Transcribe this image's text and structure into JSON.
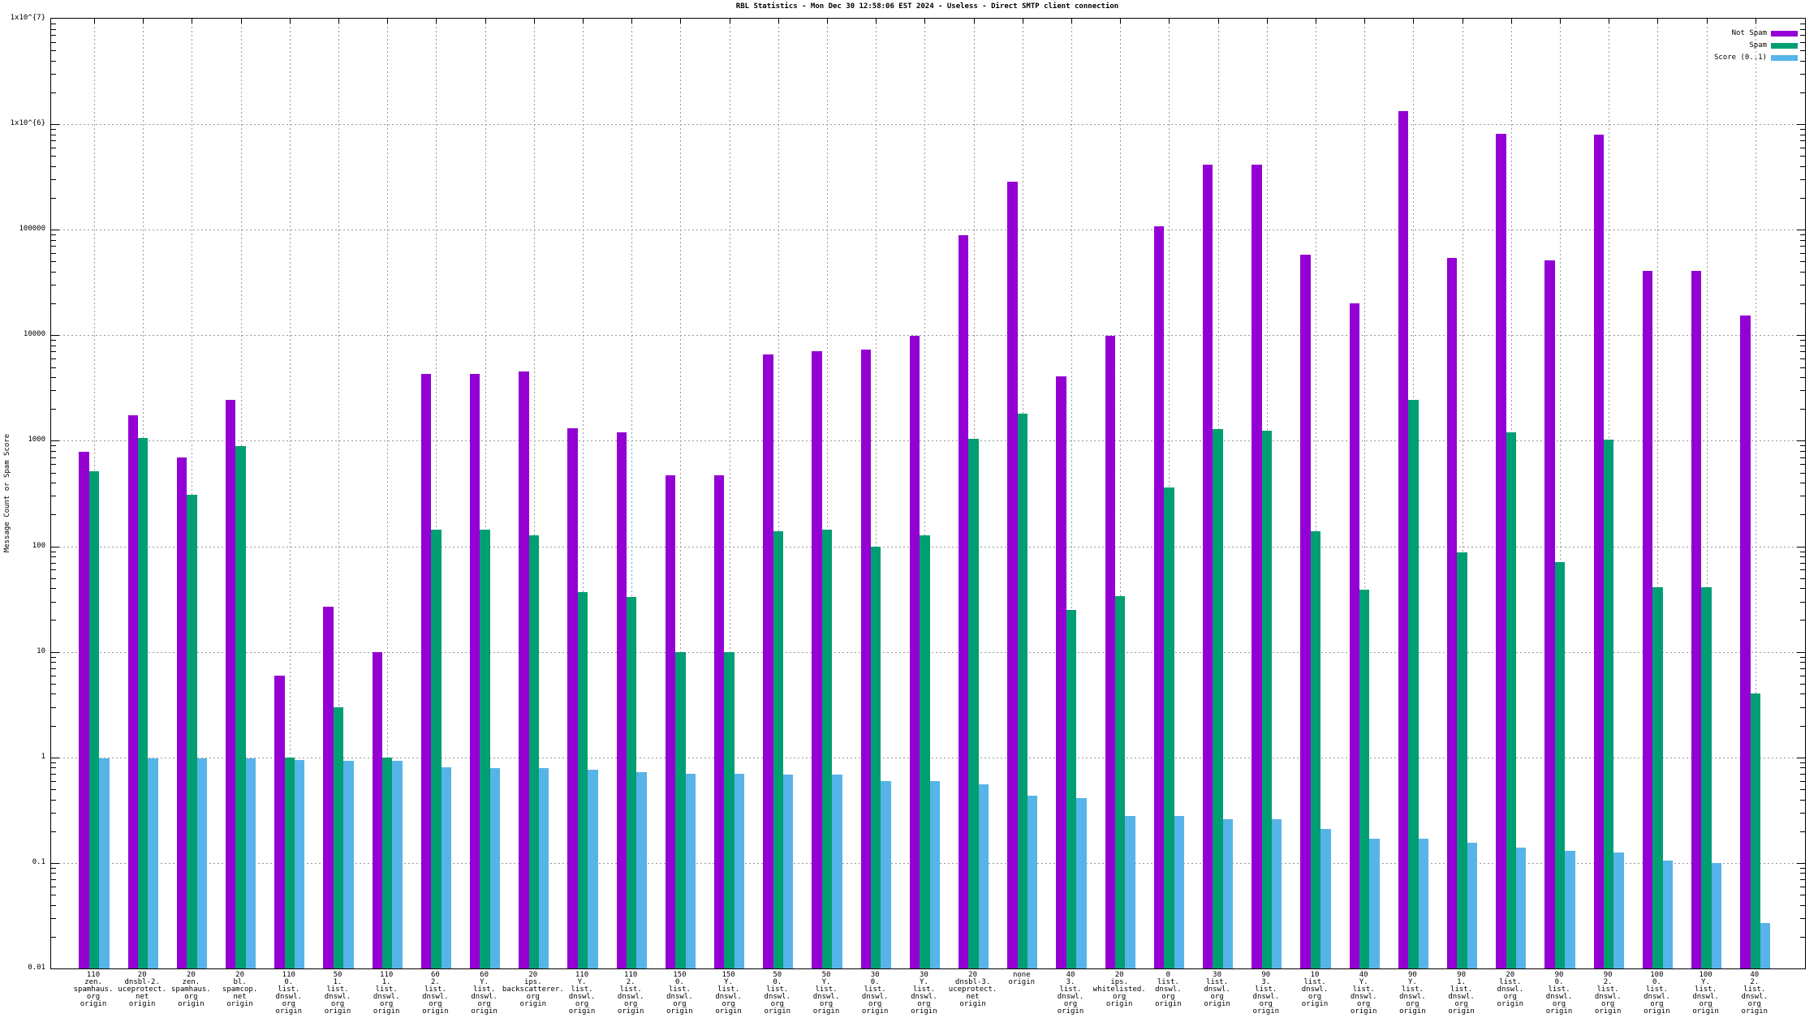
{
  "title": "RBL Statistics - Mon Dec 30 12:58:06 EST 2024 - Useless - Direct SMTP client connection",
  "ylabel": "Message Count or Spam Score",
  "chart_data": {
    "type": "bar",
    "y_scale": "log",
    "ylim": [
      0.01,
      10000000
    ],
    "grid": "dotted",
    "legend_position": "top-right-inside",
    "y_tick_labels": [
      "1x10^{7}",
      "1x10^{6}",
      "100000",
      "10000",
      "1000",
      "100",
      "10",
      "1",
      "0.1",
      "0.01"
    ],
    "categories_lines": [
      [
        "110",
        "zen.",
        "spamhaus.",
        "org",
        "origin"
      ],
      [
        "20",
        "dnsbl-2.",
        "uceprotect.",
        "net",
        "origin"
      ],
      [
        "20",
        "zen.",
        "spamhaus.",
        "org",
        "origin"
      ],
      [
        "20",
        "bl.",
        "spamcop.",
        "net",
        "origin"
      ],
      [
        "110",
        "0.",
        "list.",
        "dnswl.",
        "org",
        "origin"
      ],
      [
        "50",
        "1.",
        "list.",
        "dnswl.",
        "org",
        "origin"
      ],
      [
        "110",
        "1.",
        "list.",
        "dnswl.",
        "org",
        "origin"
      ],
      [
        "60",
        "2.",
        "list.",
        "dnswl.",
        "org",
        "origin"
      ],
      [
        "60",
        "Y.",
        "list.",
        "dnswl.",
        "org",
        "origin"
      ],
      [
        "20",
        "ips.",
        "backscatterer.",
        "org",
        "origin"
      ],
      [
        "110",
        "Y.",
        "list.",
        "dnswl.",
        "org",
        "origin"
      ],
      [
        "110",
        "2.",
        "list.",
        "dnswl.",
        "org",
        "origin"
      ],
      [
        "150",
        "0.",
        "list.",
        "dnswl.",
        "org",
        "origin"
      ],
      [
        "150",
        "Y.",
        "list.",
        "dnswl.",
        "org",
        "origin"
      ],
      [
        "50",
        "0.",
        "list.",
        "dnswl.",
        "org",
        "origin"
      ],
      [
        "50",
        "Y.",
        "list.",
        "dnswl.",
        "org",
        "origin"
      ],
      [
        "30",
        "0.",
        "list.",
        "dnswl.",
        "org",
        "origin"
      ],
      [
        "30",
        "Y.",
        "list.",
        "dnswl.",
        "org",
        "origin"
      ],
      [
        "20",
        "dnsbl-3.",
        "uceprotect.",
        "net",
        "origin"
      ],
      [
        "none",
        "origin"
      ],
      [
        "40",
        "3.",
        "list.",
        "dnswl.",
        "org",
        "origin"
      ],
      [
        "20",
        "ips.",
        "whitelisted.",
        "org",
        "origin"
      ],
      [
        "0",
        "list.",
        "dnswl.",
        "org",
        "origin"
      ],
      [
        "30",
        "list.",
        "dnswl.",
        "org",
        "origin"
      ],
      [
        "90",
        "3.",
        "list.",
        "dnswl.",
        "org",
        "origin"
      ],
      [
        "10",
        "list.",
        "dnswl.",
        "org",
        "origin"
      ],
      [
        "40",
        "Y.",
        "list.",
        "dnswl.",
        "org",
        "origin"
      ],
      [
        "90",
        "Y.",
        "list.",
        "dnswl.",
        "org",
        "origin"
      ],
      [
        "90",
        "1.",
        "list.",
        "dnswl.",
        "org",
        "origin"
      ],
      [
        "20",
        "list.",
        "dnswl.",
        "org",
        "origin"
      ],
      [
        "90",
        "0.",
        "list.",
        "dnswl.",
        "org",
        "origin"
      ],
      [
        "90",
        "2.",
        "list.",
        "dnswl.",
        "org",
        "origin"
      ],
      [
        "100",
        "0.",
        "list.",
        "dnswl.",
        "org",
        "origin"
      ],
      [
        "100",
        "Y.",
        "list.",
        "dnswl.",
        "org",
        "origin"
      ],
      [
        "40",
        "2.",
        "list.",
        "dnswl.",
        "org",
        "origin"
      ]
    ],
    "series": [
      {
        "name": "Not Spam",
        "color": "#9400d3",
        "values": [
          790,
          1750,
          690,
          2450,
          6,
          27,
          10,
          4300,
          4300,
          4500,
          1320,
          1200,
          475,
          475,
          6600,
          7000,
          7300,
          9800,
          89000,
          285000,
          4100,
          9900,
          108000,
          415000,
          415000,
          58000,
          20000,
          1320000,
          54000,
          810000,
          51000,
          800000,
          41000,
          41000,
          15500
        ]
      },
      {
        "name": "Spam",
        "color": "#009e73",
        "values": [
          510,
          1070,
          310,
          890,
          1,
          3,
          1,
          143,
          143,
          126,
          37,
          33,
          10,
          10,
          140,
          143,
          100,
          127,
          1050,
          1820,
          25,
          34,
          360,
          1280,
          1250,
          139,
          39,
          2450,
          88,
          1200,
          71,
          1020,
          41,
          41,
          4
        ]
      },
      {
        "name": "Score (0..1)",
        "color": "#56b4e9",
        "values": [
          0.98,
          0.98,
          0.98,
          0.98,
          0.94,
          0.93,
          0.92,
          0.8,
          0.79,
          0.79,
          0.76,
          0.73,
          0.7,
          0.7,
          0.69,
          0.69,
          0.6,
          0.6,
          0.56,
          0.43,
          0.41,
          0.28,
          0.28,
          0.26,
          0.26,
          0.21,
          0.17,
          0.17,
          0.155,
          0.14,
          0.13,
          0.125,
          0.105,
          0.1,
          0.027
        ]
      }
    ],
    "colors": {
      "grid": "#9a9a9a",
      "axis": "#000000",
      "background": "#ffffff"
    }
  }
}
